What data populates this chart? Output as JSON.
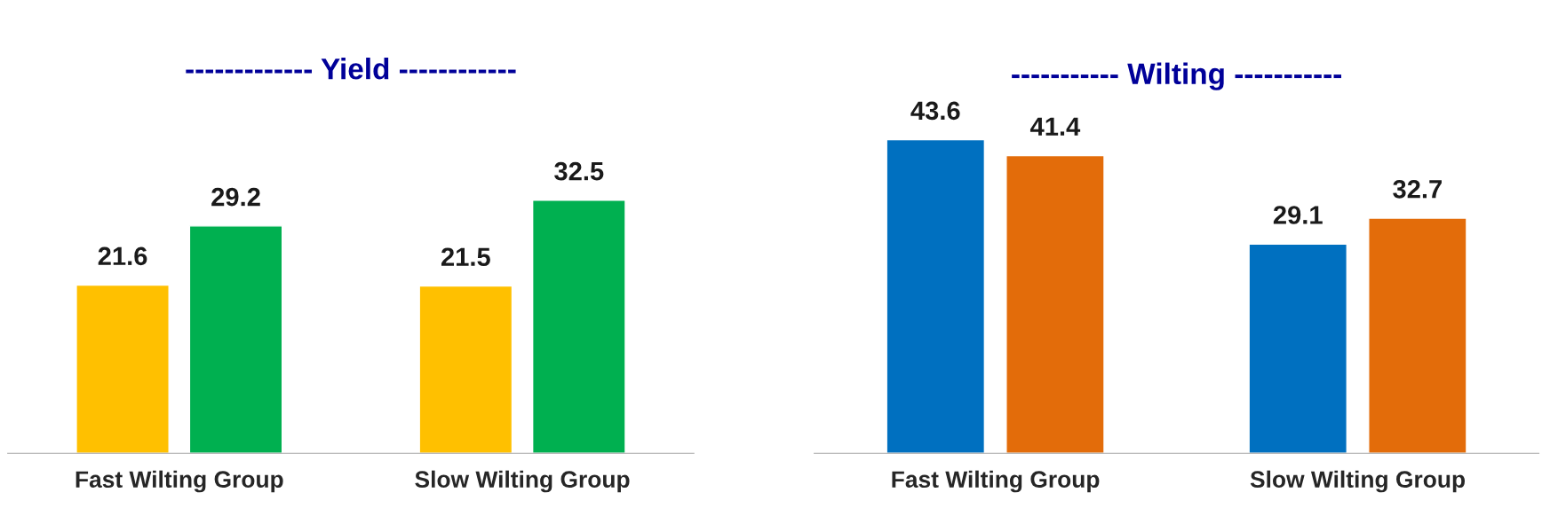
{
  "chart_data": [
    {
      "type": "bar",
      "title": "------------- Yield ------------",
      "categories": [
        "Fast Wilting Group",
        "Slow Wilting Group"
      ],
      "series": [
        {
          "color": "#ffc000",
          "values": [
            21.6,
            21.5
          ]
        },
        {
          "color": "#00b050",
          "values": [
            29.2,
            32.5
          ]
        }
      ],
      "data_labels": true,
      "legend": false,
      "grid": false
    },
    {
      "type": "bar",
      "title": "----------- Wilting -----------",
      "categories": [
        "Fast Wilting Group",
        "Slow Wilting Group"
      ],
      "series": [
        {
          "color": "#0070c0",
          "values": [
            43.6,
            29.1
          ]
        },
        {
          "color": "#e36c0a",
          "values": [
            41.4,
            32.7
          ]
        }
      ],
      "data_labels": true,
      "legend": false,
      "grid": false
    }
  ]
}
